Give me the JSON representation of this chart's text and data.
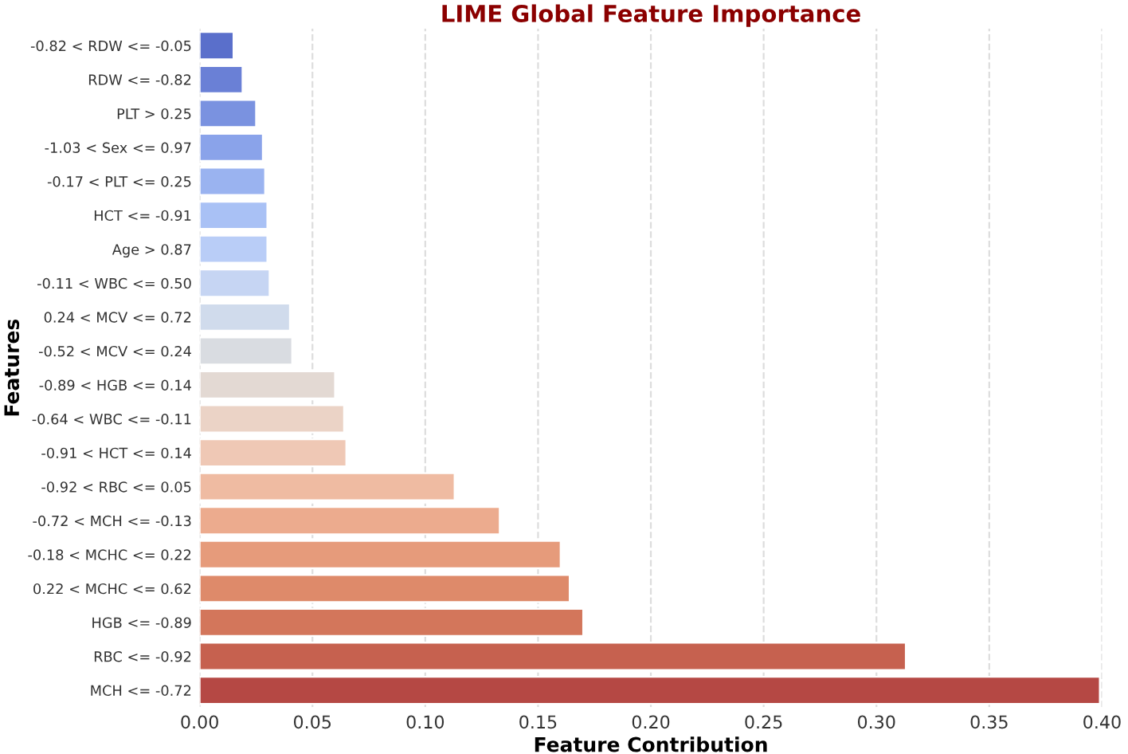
{
  "chart_data": {
    "type": "bar",
    "orientation": "horizontal",
    "title": "LIME Global Feature Importance",
    "xlabel": "Feature Contribution",
    "ylabel": "Features",
    "categories": [
      "-0.82 < RDW <= -0.05",
      "RDW <= -0.82",
      "PLT > 0.25",
      "-1.03 < Sex <= 0.97",
      "-0.17 < PLT <= 0.25",
      "HCT <= -0.91",
      "Age > 0.87",
      "-0.11 < WBC <= 0.50",
      "0.24 < MCV <= 0.72",
      "-0.52 < MCV <= 0.24",
      "-0.89 < HGB <= 0.14",
      "-0.64 < WBC <= -0.11",
      "-0.91 < HCT <= 0.14",
      "-0.92 < RBC <= 0.05",
      "-0.72 < MCH <= -0.13",
      "-0.18 < MCHC <= 0.22",
      "0.22 < MCHC <= 0.62",
      "HGB <= -0.89",
      "RBC <= -0.92",
      "MCH <= -0.72"
    ],
    "values": [
      0.015,
      0.019,
      0.025,
      0.028,
      0.029,
      0.03,
      0.03,
      0.031,
      0.04,
      0.041,
      0.06,
      0.064,
      0.065,
      0.113,
      0.133,
      0.16,
      0.164,
      0.17,
      0.313,
      0.399
    ],
    "colors": [
      "#5a6fcb",
      "#6a80d6",
      "#7a92e0",
      "#8aa3ea",
      "#9ab3f0",
      "#a9c1f5",
      "#b9cdf7",
      "#c6d5f3",
      "#d0dbec",
      "#d9dce1",
      "#e3d9d3",
      "#ebd3c6",
      "#efc8b5",
      "#efbba2",
      "#ecab8e",
      "#e69b7b",
      "#de8a6a",
      "#d3765b",
      "#c6614f",
      "#b54844"
    ],
    "xlim": [
      0,
      0.4
    ],
    "xticks": [
      {
        "value": 0,
        "label": "0.00"
      },
      {
        "value": 0.05,
        "label": "0.05"
      },
      {
        "value": 0.1,
        "label": "0.10"
      },
      {
        "value": 0.15,
        "label": "0.15"
      },
      {
        "value": 0.2,
        "label": "0.20"
      },
      {
        "value": 0.25,
        "label": "0.25"
      },
      {
        "value": 0.3,
        "label": "0.30"
      },
      {
        "value": 0.35,
        "label": "0.35"
      },
      {
        "value": 0.4,
        "label": "0.40"
      }
    ],
    "grid": "x",
    "line_style": "dashed"
  }
}
